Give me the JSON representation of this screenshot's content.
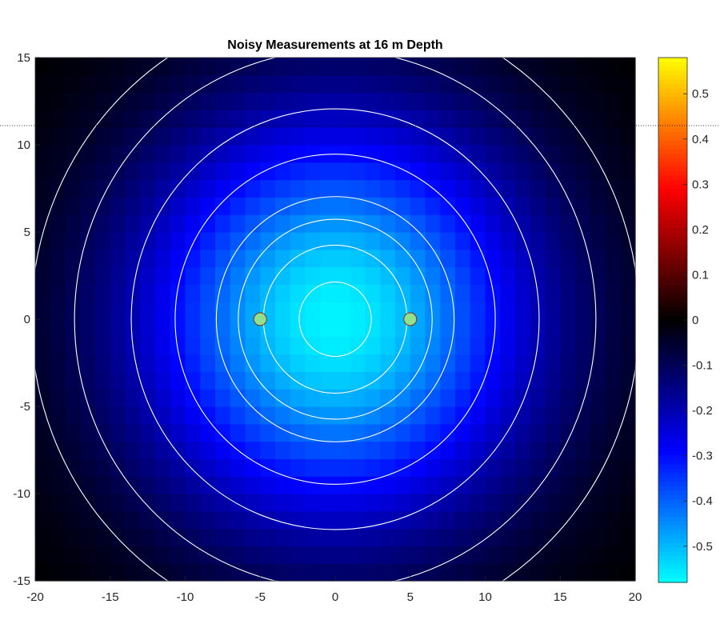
{
  "chart_data": {
    "type": "heatmap",
    "title": "Noisy Measurements at 16 m Depth",
    "xlabel": "",
    "ylabel": "",
    "xlim": [
      -20,
      20
    ],
    "ylim": [
      -15,
      15
    ],
    "x_ticks": [
      -20,
      -15,
      -10,
      -5,
      0,
      5,
      10,
      15,
      20
    ],
    "y_ticks": [
      -15,
      -10,
      -5,
      0,
      5,
      10,
      15
    ],
    "grid": false,
    "colorbar": {
      "range": [
        -0.58,
        0.58
      ],
      "ticks": [
        0.5,
        0.4,
        0.3,
        0.2,
        0.1,
        0,
        -0.1,
        -0.2,
        -0.3,
        -0.4,
        -0.5
      ],
      "tick_labels": [
        "0.5",
        "0.4",
        "0.3",
        "0.2",
        "0.1",
        "0",
        "-0.1",
        "-0.2",
        "-0.3",
        "-0.4",
        "-0.5"
      ],
      "colors": {
        "low": "#00ffff",
        "mid_low": "#0000ff",
        "zero": "#000000",
        "mid_high": "#ff0000",
        "high": "#ffff00"
      }
    },
    "grid_resolution_m": 1,
    "field": {
      "description_center": [
        0,
        0
      ],
      "peak_value": -0.58
    },
    "contour_levels": [
      -0.55,
      -0.5,
      -0.45,
      -0.4,
      -0.3,
      -0.2,
      -0.1,
      -0.05
    ],
    "sources": [
      {
        "x": -5,
        "y": 0
      },
      {
        "x": 5,
        "y": 0
      }
    ],
    "source_color": "#8fe08f",
    "contour_color": "#ffffff"
  }
}
